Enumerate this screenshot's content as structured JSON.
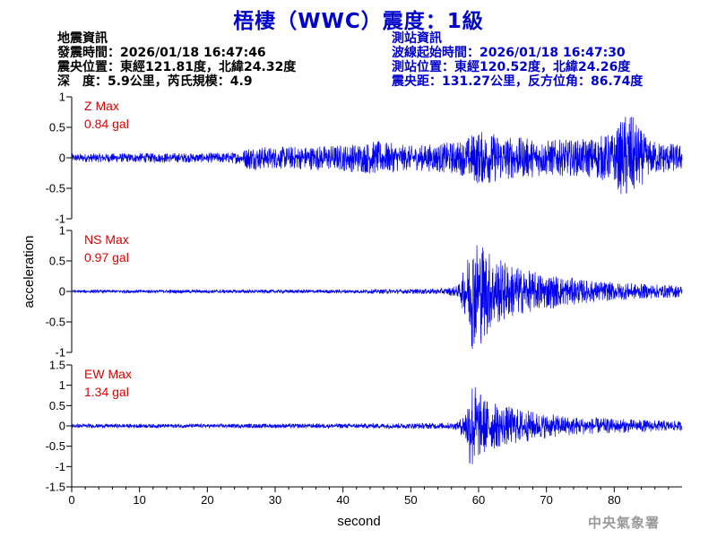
{
  "title": "梧棲（WWC）震度：1級",
  "quake_info": {
    "heading": "地震資訊",
    "origin_time": "發震時間：2026/01/18 16:47:46",
    "epicenter": "震央位置：東經121.81度，北緯24.32度",
    "depth_magnitude": "深　度：5.9公里，芮氏規模：4.9"
  },
  "station_info": {
    "heading": "測站資訊",
    "wave_start": "波線起始時間：2026/01/18 16:47:30",
    "location": "測站位置：東經120.52度，北緯24.26度",
    "distance": "震央距：131.27公里，反方位角：86.74度"
  },
  "agency": "中央氣象署",
  "colors": {
    "title": "#0000cc",
    "trace": "#0000ee",
    "max_label": "#dd0000",
    "axis": "#000000"
  },
  "chart_data": {
    "type": "line",
    "xlabel": "second",
    "ylabel": "acceleration",
    "xlim": [
      0,
      90
    ],
    "x_ticks": [
      0,
      10,
      20,
      30,
      40,
      50,
      60,
      70,
      80
    ],
    "grid": false,
    "panels": [
      {
        "name": "Z",
        "max_label": "Z Max",
        "max_value": "0.84 gal",
        "ylim": [
          -1,
          1
        ],
        "y_ticks": [
          1,
          0.5,
          0,
          -0.5,
          -1
        ],
        "envelope": {
          "x": [
            0,
            10,
            20,
            25,
            26,
            30,
            40,
            45,
            50,
            55,
            58,
            59,
            60,
            62,
            65,
            70,
            75,
            80,
            82,
            85,
            90
          ],
          "y": [
            0.07,
            0.08,
            0.08,
            0.1,
            0.2,
            0.18,
            0.22,
            0.28,
            0.2,
            0.25,
            0.3,
            0.4,
            0.45,
            0.42,
            0.35,
            0.3,
            0.3,
            0.42,
            0.8,
            0.3,
            0.22
          ]
        }
      },
      {
        "name": "NS",
        "max_label": "NS Max",
        "max_value": "0.97 gal",
        "ylim": [
          -1,
          1
        ],
        "y_ticks": [
          1,
          0.5,
          0,
          -0.5,
          -1
        ],
        "envelope": {
          "x": [
            0,
            20,
            40,
            50,
            55,
            57,
            58,
            59,
            60,
            61,
            62,
            64,
            67,
            70,
            75,
            80,
            85,
            90
          ],
          "y": [
            0.025,
            0.03,
            0.03,
            0.04,
            0.05,
            0.1,
            0.4,
            0.95,
            0.9,
            0.8,
            0.6,
            0.5,
            0.35,
            0.3,
            0.2,
            0.15,
            0.12,
            0.1
          ]
        }
      },
      {
        "name": "EW",
        "max_label": "EW Max",
        "max_value": "1.34 gal",
        "ylim": [
          -1.5,
          1.5
        ],
        "y_ticks": [
          1.5,
          1,
          0.5,
          0,
          -0.5,
          -1,
          -1.5
        ],
        "envelope": {
          "x": [
            0,
            20,
            40,
            50,
            55,
            57,
            58,
            59,
            60,
            61,
            62,
            64,
            67,
            70,
            75,
            80,
            85,
            90
          ],
          "y": [
            0.05,
            0.05,
            0.06,
            0.07,
            0.08,
            0.1,
            0.4,
            1.3,
            0.85,
            0.7,
            0.6,
            0.5,
            0.4,
            0.3,
            0.22,
            0.18,
            0.15,
            0.12
          ]
        }
      }
    ]
  }
}
